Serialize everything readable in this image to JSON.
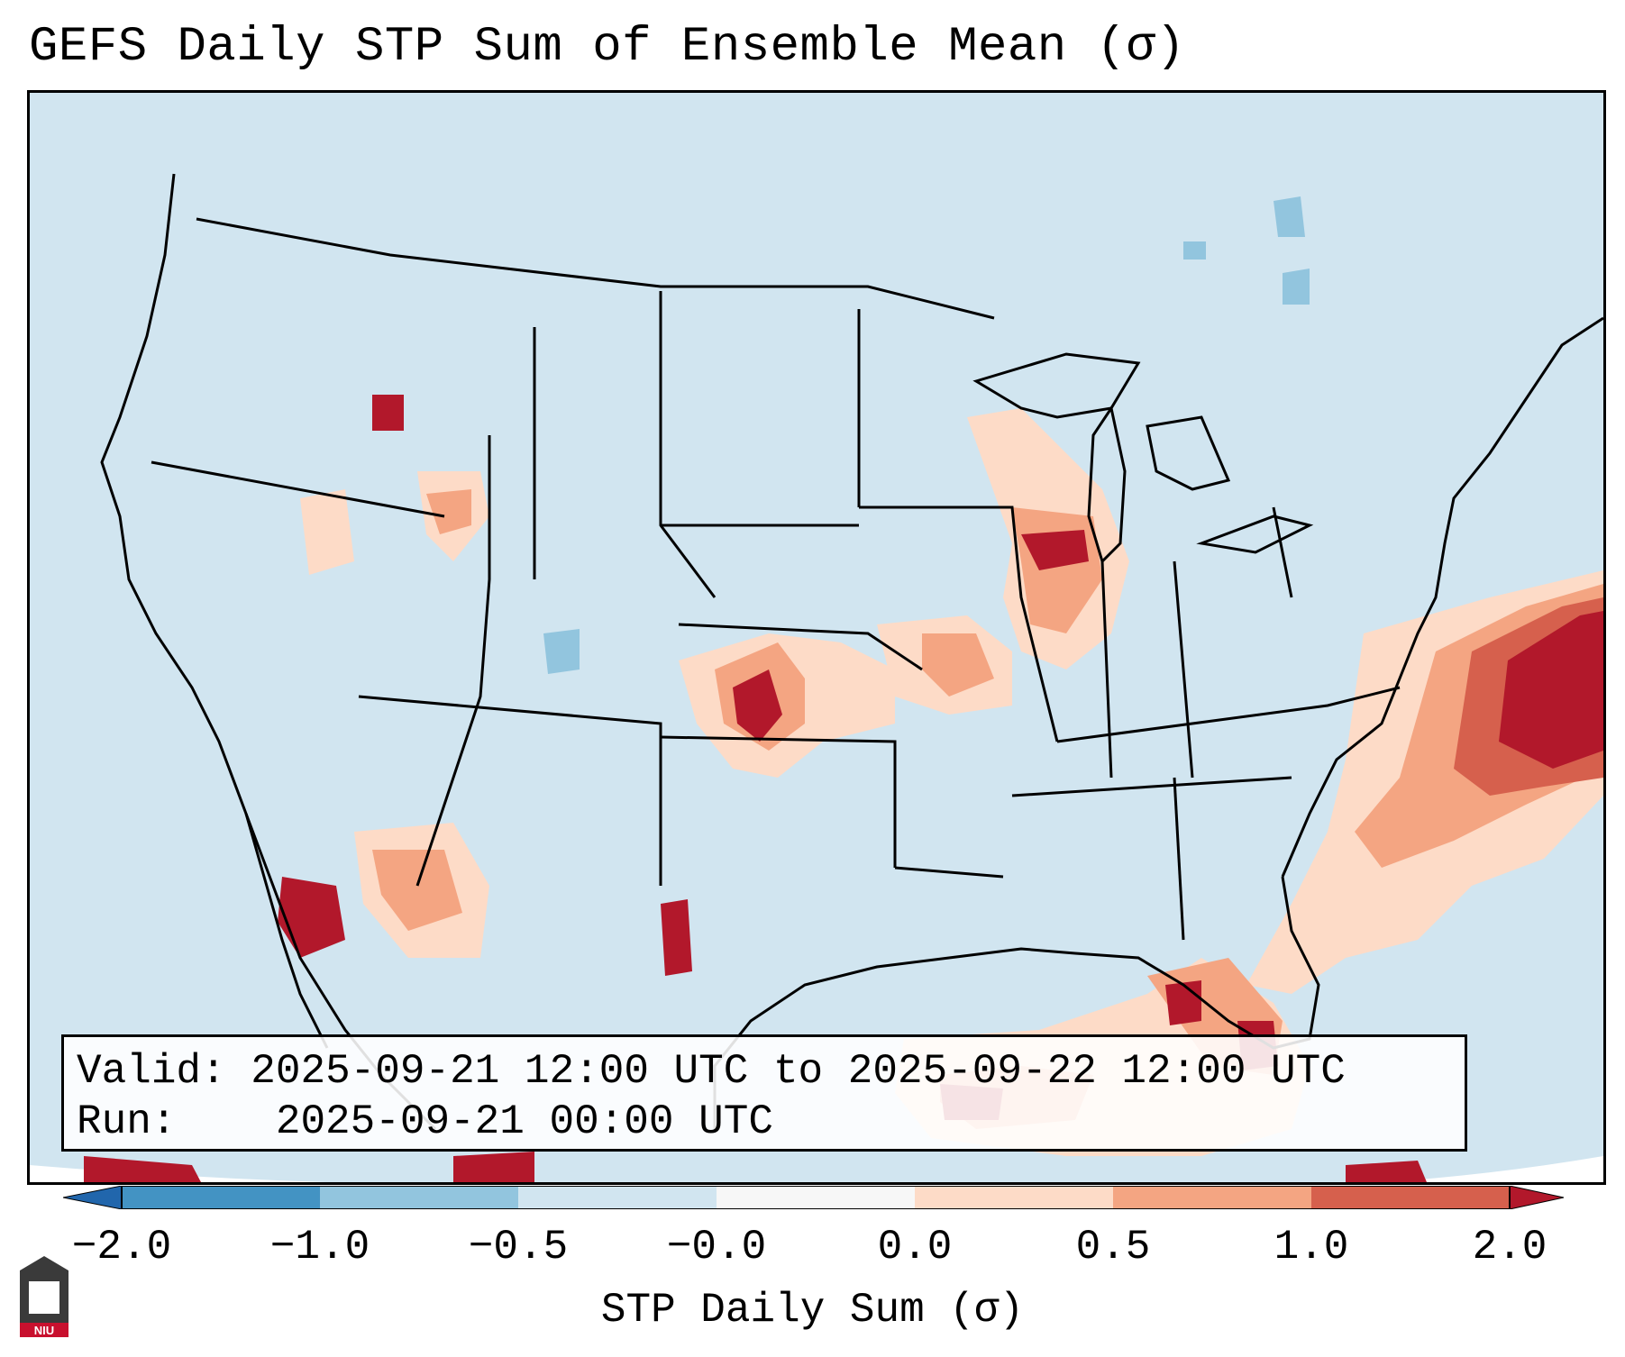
{
  "title": "GEFS Daily STP Sum of Ensemble Mean (σ)",
  "info": {
    "valid_label": "Valid:",
    "valid_range": "2025-09-21 12:00 UTC to 2025-09-22 12:00 UTC",
    "run_label": "Run:",
    "run_time": "2025-09-21 00:00 UTC"
  },
  "colorbar": {
    "label": "STP Daily Sum (σ)",
    "ticks": [
      "−2.0",
      "−1.0",
      "−0.5",
      "−0.0",
      "0.0",
      "0.5",
      "1.0",
      "2.0"
    ],
    "bins": [
      {
        "from": "−2.0",
        "to": "−1.0",
        "color": "#4393c3"
      },
      {
        "from": "−1.0",
        "to": "−0.5",
        "color": "#92c5de"
      },
      {
        "from": "−0.5",
        "to": "−0.0",
        "color": "#d1e5f0"
      },
      {
        "from": "−0.0",
        "to": "0.0",
        "color": "#f7f7f7"
      },
      {
        "from": "0.0",
        "to": "0.5",
        "color": "#fddbc7"
      },
      {
        "from": "0.5",
        "to": "1.0",
        "color": "#f4a582"
      },
      {
        "from": "1.0",
        "to": "2.0",
        "color": "#d6604d"
      }
    ],
    "under_color": "#2166ac",
    "over_color": "#b2182b"
  },
  "colors": {
    "background": "#d1e5f0",
    "light": "#fddbc7",
    "medium": "#f4a582",
    "strong": "#d6604d",
    "extreme": "#b2182b",
    "neg_light": "#92c5de"
  },
  "logo": {
    "text": "NIU"
  }
}
